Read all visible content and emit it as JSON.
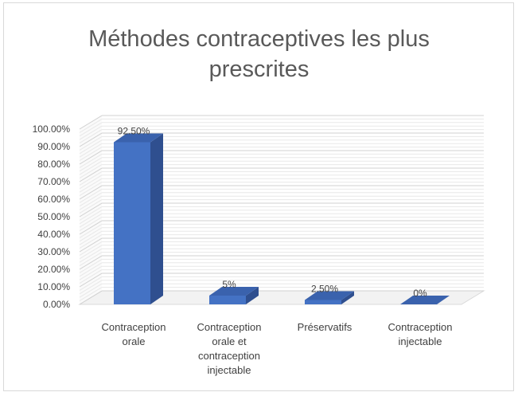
{
  "chart_data": {
    "type": "bar",
    "title": [
      "Méthodes contraceptives les plus",
      "prescrites"
    ],
    "categories": [
      [
        "Contraception",
        "orale"
      ],
      [
        "Contraception",
        "orale et",
        "contraception",
        "injectable"
      ],
      [
        "Préservatifs"
      ],
      [
        "Contraception",
        "injectable"
      ]
    ],
    "values": [
      92.5,
      5,
      2.5,
      0
    ],
    "data_labels": [
      "92.50%",
      "5%",
      "2.50%",
      "0%"
    ],
    "y_ticks": [
      "0.00%",
      "10.00%",
      "20.00%",
      "30.00%",
      "40.00%",
      "50.00%",
      "60.00%",
      "70.00%",
      "80.00%",
      "90.00%",
      "100.00%"
    ],
    "ylim": [
      0,
      100
    ],
    "grid": true,
    "legend": "none",
    "colors": {
      "bar_front": "#4472c4",
      "bar_side": "#2f4f8f",
      "bar_top": "#3a62ad",
      "grid": "#d9d9d9",
      "text": "#404040",
      "title": "#595959"
    }
  }
}
